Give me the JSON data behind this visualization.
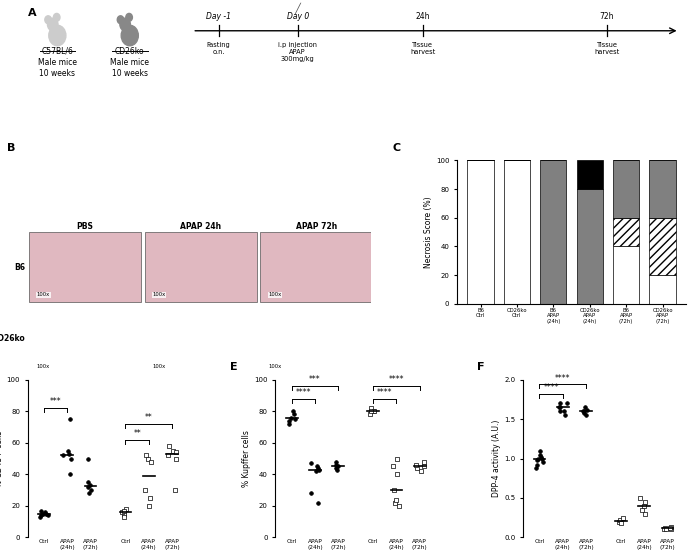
{
  "panel_C": {
    "categories": [
      "B6\nCtrl",
      "CD26ko\nCtrl",
      "B6\nAPAP\n(24h)",
      "CD26ko\nAPAP\n(24h)",
      "B6\nAPAP\n(72h)",
      "CD26ko\nAPAP\n(72h)"
    ],
    "score0": [
      100,
      100,
      0,
      0,
      40,
      20
    ],
    "score1": [
      0,
      0,
      0,
      0,
      20,
      40
    ],
    "score2": [
      0,
      0,
      0,
      0,
      0,
      0
    ],
    "score3": [
      0,
      0,
      100,
      80,
      40,
      40
    ],
    "score4": [
      0,
      0,
      0,
      20,
      0,
      0
    ],
    "color0": "#ffffff",
    "color1": "#ffffff",
    "color2": "#c0c0c0",
    "color3": "#808080",
    "color4": "#000000",
    "ylabel": "Necrosis Score (%)"
  },
  "panel_D": {
    "ylabel": "% CD45+ cells",
    "ylim": [
      0,
      100
    ],
    "yticks": [
      0,
      20,
      40,
      60,
      80,
      100
    ],
    "B6_Ctrl": [
      15,
      14,
      15,
      16,
      17,
      14,
      13
    ],
    "B6_APAP24": [
      75,
      55,
      53,
      52,
      50,
      40
    ],
    "B6_APAP72": [
      50,
      35,
      32,
      28,
      30,
      33
    ],
    "CD26ko_Ctrl": [
      15,
      18,
      16,
      13,
      17
    ],
    "CD26ko_APAP24": [
      50,
      48,
      52,
      20,
      25,
      30
    ],
    "CD26ko_APAP72": [
      55,
      58,
      52,
      54,
      50,
      30
    ],
    "sig_brackets": [
      [
        0,
        1,
        "***",
        82
      ],
      [
        3.5,
        4.5,
        "**",
        62
      ],
      [
        3.5,
        5.5,
        "**",
        72
      ]
    ]
  },
  "panel_E": {
    "ylabel": "% Kupffer cells",
    "ylim": [
      0,
      100
    ],
    "yticks": [
      0,
      20,
      40,
      60,
      80,
      100
    ],
    "B6_Ctrl": [
      76,
      75,
      78,
      80,
      72,
      74
    ],
    "B6_APAP24": [
      28,
      22,
      42,
      45,
      47,
      43,
      44
    ],
    "B6_APAP72": [
      44,
      46,
      48,
      43,
      45
    ],
    "CD26ko_Ctrl": [
      80,
      82,
      80,
      78,
      80
    ],
    "CD26ko_APAP24": [
      22,
      24,
      20,
      30,
      40,
      50,
      45
    ],
    "CD26ko_APAP72": [
      42,
      44,
      46,
      48,
      45
    ],
    "sig_brackets": [
      [
        0,
        1,
        "****",
        88
      ],
      [
        0,
        2,
        "***",
        96
      ],
      [
        3.5,
        4.5,
        "****",
        88
      ],
      [
        3.5,
        5.5,
        "****",
        96
      ]
    ]
  },
  "panel_F": {
    "ylabel": "DPP-4 activity (A.U.)",
    "ylim": [
      0,
      2.0
    ],
    "yticks": [
      0.0,
      0.5,
      1.0,
      1.5,
      2.0
    ],
    "B6_Ctrl": [
      1.0,
      0.95,
      1.02,
      1.05,
      0.98,
      0.92,
      0.88,
      1.0,
      1.1
    ],
    "B6_APAP24": [
      1.6,
      1.65,
      1.7,
      1.55,
      1.6,
      1.65,
      1.7
    ],
    "B6_APAP72": [
      1.6,
      1.55,
      1.65,
      1.58,
      1.62,
      1.6
    ],
    "CD26ko_Ctrl": [
      0.2,
      0.22,
      0.18,
      0.25
    ],
    "CD26ko_APAP24": [
      0.35,
      0.4,
      0.45,
      0.5,
      0.3
    ],
    "CD26ko_APAP72": [
      0.12,
      0.1,
      0.11,
      0.13,
      0.12,
      0.11
    ],
    "sig_brackets": [
      [
        0,
        1,
        "****",
        1.82
      ],
      [
        0,
        2,
        "****",
        1.94
      ]
    ]
  }
}
